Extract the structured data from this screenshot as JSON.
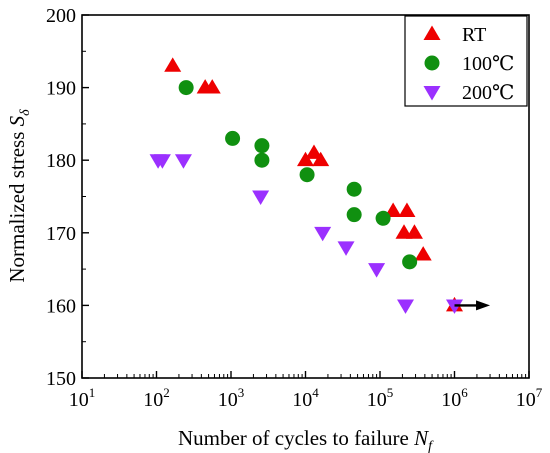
{
  "chart_data": {
    "type": "scatter",
    "xscale": "log",
    "xlim": [
      10,
      10000000
    ],
    "ylim": [
      150,
      200
    ],
    "xlabel": "Number of cycles to failure",
    "xlabel_symbol": "N",
    "xlabel_subscript": "f",
    "ylabel": "Normalized stress",
    "ylabel_symbol": "S",
    "ylabel_subscript": "δ",
    "x_tick_bases": [
      "10",
      "10",
      "10",
      "10",
      "10",
      "10",
      "10"
    ],
    "x_tick_exponents": [
      "1",
      "2",
      "3",
      "4",
      "5",
      "6",
      "7"
    ],
    "y_ticks": [
      150,
      160,
      170,
      180,
      190,
      200
    ],
    "grid": false,
    "legend_position": "top-right",
    "runout_arrow": {
      "from": [
        1000000,
        160
      ],
      "to": [
        3000000,
        160
      ],
      "color": "#000000"
    },
    "series": [
      {
        "name": "RT",
        "marker": "triangle-up",
        "color": "#ee0000",
        "points": [
          [
            165,
            193
          ],
          [
            450,
            190
          ],
          [
            560,
            190
          ],
          [
            10000,
            180
          ],
          [
            13000,
            181
          ],
          [
            16000,
            180
          ],
          [
            150000,
            173
          ],
          [
            230000,
            173
          ],
          [
            210000,
            170
          ],
          [
            290000,
            170
          ],
          [
            380000,
            167
          ],
          [
            1000000,
            160
          ]
        ]
      },
      {
        "name": "100℃",
        "marker": "circle",
        "color": "#109010",
        "points": [
          [
            250,
            190
          ],
          [
            1050,
            183
          ],
          [
            2600,
            182
          ],
          [
            2600,
            180
          ],
          [
            10500,
            178
          ],
          [
            45000,
            176
          ],
          [
            45000,
            172.5
          ],
          [
            110000,
            172
          ],
          [
            250000,
            166
          ]
        ]
      },
      {
        "name": "200℃",
        "marker": "triangle-down",
        "color": "#9b30ff",
        "points": [
          [
            105,
            180
          ],
          [
            120,
            180
          ],
          [
            230,
            180
          ],
          [
            2500,
            175
          ],
          [
            17000,
            170
          ],
          [
            35000,
            168
          ],
          [
            90000,
            165
          ],
          [
            220000,
            160
          ],
          [
            1000000,
            160
          ]
        ]
      }
    ]
  }
}
